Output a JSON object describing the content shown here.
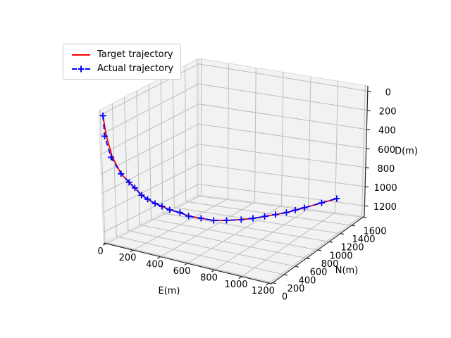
{
  "figure": {
    "background": "#ffffff"
  },
  "legend": {
    "position": "upper left",
    "items": [
      {
        "label": "Target trajectory",
        "color": "#ff0000",
        "linestyle": "solid",
        "marker": null
      },
      {
        "label": "Actual trajectory",
        "color": "#0000ff",
        "linestyle": "dashed",
        "marker": "+"
      }
    ]
  },
  "chart_data": {
    "type": "line",
    "projection": "3d",
    "title": "",
    "grid": true,
    "legend_position": "upper left",
    "axes": {
      "x": {
        "label": "E(m)",
        "range": [
          0,
          1200
        ],
        "ticks": [
          0,
          200,
          400,
          600,
          800,
          1000,
          1200
        ]
      },
      "y": {
        "label": "N(m)",
        "range": [
          0,
          1600
        ],
        "ticks": [
          0,
          200,
          400,
          600,
          800,
          1000,
          1200,
          1400,
          1600
        ]
      },
      "z": {
        "label": "D(m)",
        "range": [
          0,
          1200
        ],
        "ticks": [
          0,
          200,
          400,
          600,
          800,
          1000,
          1200
        ],
        "positive_down": true
      }
    },
    "colors": {
      "pane": "#f2f2f2",
      "pane_edge": "#dbdbdb",
      "grid": "#bdbdbd",
      "axis": "#2a2a2a",
      "text": "#000000"
    },
    "series": [
      {
        "name": "Target trajectory",
        "color": "#ff0000",
        "linestyle": "solid",
        "marker": null,
        "E": [
          0,
          12,
          36,
          74,
          110,
          136,
          166,
          194,
          228,
          260,
          296,
          344,
          384,
          443,
          502,
          563,
          632,
          688,
          743,
          794,
          846,
          888,
          931,
          1013,
          1085
        ],
        "N": [
          0,
          16,
          48,
          99,
          147,
          181,
          221,
          259,
          304,
          347,
          395,
          459,
          512,
          590,
          669,
          750,
          843,
          917,
          990,
          1059,
          1128,
          1184,
          1242,
          1350,
          1446
        ],
        "D": [
          0,
          207,
          428,
          605,
          696,
          756,
          833,
          879,
          927,
          960,
          1001,
          1036,
          1079,
          1111,
          1144,
          1156,
          1164,
          1163,
          1158,
          1153,
          1145,
          1133,
          1121,
          1096,
          1076
        ]
      },
      {
        "name": "Actual trajectory",
        "color": "#0000ff",
        "linestyle": "dashed",
        "marker": "+",
        "E": [
          0,
          4,
          30,
          74,
          110,
          136,
          166,
          194,
          228,
          260,
          296,
          344,
          384,
          443,
          502,
          563,
          632,
          688,
          743,
          794,
          846,
          888,
          931,
          1013,
          1085
        ],
        "N": [
          0,
          8,
          42,
          99,
          147,
          181,
          221,
          259,
          304,
          347,
          395,
          459,
          512,
          590,
          669,
          750,
          843,
          917,
          990,
          1059,
          1128,
          1184,
          1242,
          1350,
          1446
        ],
        "D": [
          0,
          212,
          432,
          605,
          696,
          756,
          833,
          879,
          927,
          960,
          1001,
          1036,
          1079,
          1111,
          1144,
          1156,
          1164,
          1163,
          1158,
          1153,
          1145,
          1133,
          1121,
          1096,
          1076
        ]
      }
    ]
  }
}
